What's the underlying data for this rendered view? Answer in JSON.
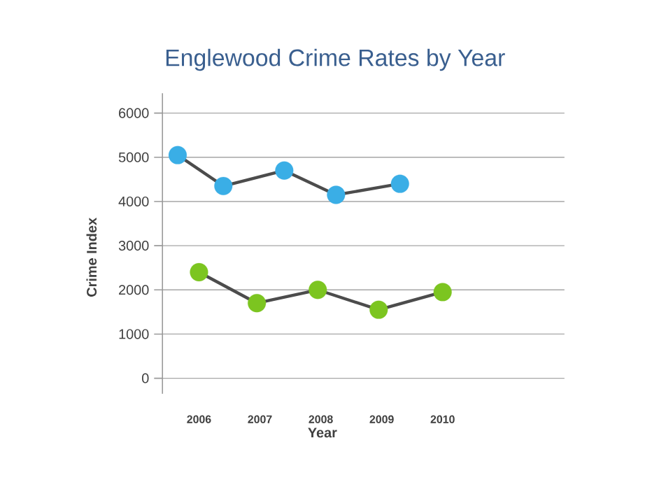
{
  "chart_data": {
    "type": "line",
    "title": "Englewood Crime Rates by Year",
    "xlabel": "Year",
    "ylabel": "Crime Index",
    "xlim": [
      2005.4,
      2012
    ],
    "xticks": [
      2006,
      2007,
      2008,
      2009,
      2010
    ],
    "ylim": [
      -350,
      6450
    ],
    "yticks": [
      0,
      1000,
      2000,
      3000,
      4000,
      5000,
      6000
    ],
    "grid": "y",
    "marker": "circle",
    "series": [
      {
        "color": "#3aaee6",
        "x": [
          2005.65,
          2006.4,
          2007.4,
          2008.25,
          2009.3
        ],
        "values": [
          5050,
          4350,
          4700,
          4150,
          4400
        ]
      },
      {
        "color": "#7cc520",
        "x": [
          2006,
          2006.95,
          2007.95,
          2008.95,
          2010
        ],
        "values": [
          2400,
          1700,
          2000,
          1550,
          1950
        ]
      }
    ]
  }
}
